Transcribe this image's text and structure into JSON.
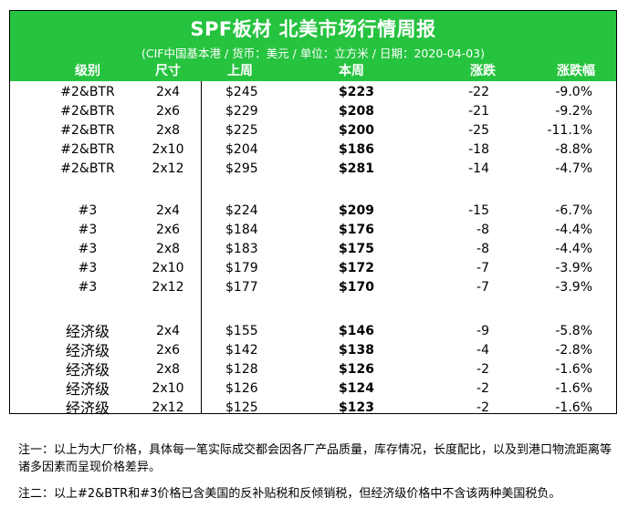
{
  "header": {
    "title": "SPF板材 北美市场行情周报",
    "subtitle": "(CIF中国基本港 / 货币：美元 / 单位：立方米 / 日期：2020-04-03)",
    "columns": [
      "级别",
      "尺寸",
      "上周",
      "本周",
      "涨跌",
      "涨跌幅"
    ]
  },
  "rows": [
    {
      "grade": "#2&BTR",
      "size": "2x4",
      "last": "$245",
      "this": "$223",
      "change": "-22",
      "pct": "-9.0%"
    },
    {
      "grade": "#2&BTR",
      "size": "2x6",
      "last": "$229",
      "this": "$208",
      "change": "-21",
      "pct": "-9.2%"
    },
    {
      "grade": "#2&BTR",
      "size": "2x8",
      "last": "$225",
      "this": "$200",
      "change": "-25",
      "pct": "-11.1%"
    },
    {
      "grade": "#2&BTR",
      "size": "2x10",
      "last": "$204",
      "this": "$186",
      "change": "-18",
      "pct": "-8.8%"
    },
    {
      "grade": "#2&BTR",
      "size": "2x12",
      "last": "$295",
      "this": "$281",
      "change": "-14",
      "pct": "-4.7%"
    },
    {
      "grade": "#3",
      "size": "2x4",
      "last": "$224",
      "this": "$209",
      "change": "-15",
      "pct": "-6.7%"
    },
    {
      "grade": "#3",
      "size": "2x6",
      "last": "$184",
      "this": "$176",
      "change": "-8",
      "pct": "-4.4%"
    },
    {
      "grade": "#3",
      "size": "2x8",
      "last": "$183",
      "this": "$175",
      "change": "-8",
      "pct": "-4.4%"
    },
    {
      "grade": "#3",
      "size": "2x10",
      "last": "$179",
      "this": "$172",
      "change": "-7",
      "pct": "-3.9%"
    },
    {
      "grade": "#3",
      "size": "2x12",
      "last": "$177",
      "this": "$170",
      "change": "-7",
      "pct": "-3.9%"
    },
    {
      "grade": "经济级",
      "size": "2x4",
      "last": "$155",
      "this": "$146",
      "change": "-9",
      "pct": "-5.8%"
    },
    {
      "grade": "经济级",
      "size": "2x6",
      "last": "$142",
      "this": "$138",
      "change": "-4",
      "pct": "-2.8%"
    },
    {
      "grade": "经济级",
      "size": "2x8",
      "last": "$128",
      "this": "$126",
      "change": "-2",
      "pct": "-1.6%"
    },
    {
      "grade": "经济级",
      "size": "2x10",
      "last": "$126",
      "this": "$124",
      "change": "-2",
      "pct": "-1.6%"
    },
    {
      "grade": "经济级",
      "size": "2x12",
      "last": "$125",
      "this": "$123",
      "change": "-2",
      "pct": "-1.6%"
    }
  ],
  "notes": {
    "note1": "注一：以上为大厂价格，具体每一笔实际成交都会因各厂产品质量，库存情况，长度配比，以及到港口物流距离等诸多因素而呈现价格差异。",
    "note2": "注二：以上#2&BTR和#3价格已含美国的反补贴税和反倾销税，但经济级价格中不含该两种美国税负。"
  },
  "colors": {
    "header_bg": "#26c33f",
    "header_text": "#ffffff"
  }
}
